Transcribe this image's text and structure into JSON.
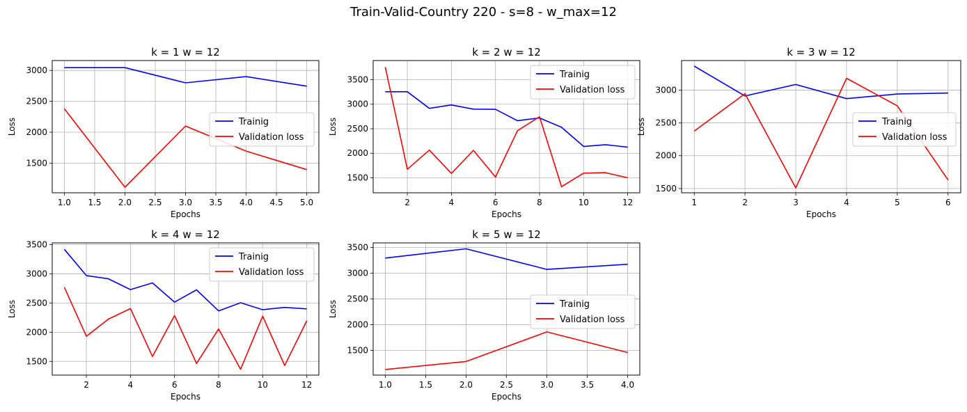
{
  "figure": {
    "title": "Train-Valid-Country 220 - s=8 - w_max=12"
  },
  "colors": {
    "train": "#0000ff",
    "validation": "#ff0000",
    "grid": "#b0b0b0"
  },
  "chart_data": [
    {
      "type": "line",
      "title": "k = 1 w = 12",
      "xlabel": "Epochs",
      "ylabel": "Loss",
      "x": [
        1,
        2,
        3,
        4,
        5
      ],
      "xlim": [
        0.8,
        5.2
      ],
      "ylim": [
        1020,
        3160
      ],
      "xticks": [
        1.0,
        1.5,
        2.0,
        2.5,
        3.0,
        3.5,
        4.0,
        4.5,
        5.0
      ],
      "xtick_labels": [
        "1.0",
        "1.5",
        "2.0",
        "2.5",
        "3.0",
        "3.5",
        "4.0",
        "4.5",
        "5.0"
      ],
      "yticks": [
        1500,
        2000,
        2500,
        3000
      ],
      "ytick_labels": [
        "1500",
        "2000",
        "2500",
        "3000"
      ],
      "grid": true,
      "legend": "center right",
      "series": [
        {
          "name": "Trainig",
          "color": "#0000ff",
          "values": [
            3045,
            3045,
            2800,
            2900,
            2745
          ]
        },
        {
          "name": "Validation loss",
          "color": "#ff0000",
          "values": [
            2380,
            1110,
            2100,
            1695,
            1395
          ]
        }
      ]
    },
    {
      "type": "line",
      "title": "k = 2 w = 12",
      "xlabel": "Epochs",
      "ylabel": "Loss",
      "x": [
        1,
        2,
        3,
        4,
        5,
        6,
        7,
        8,
        9,
        10,
        11,
        12
      ],
      "xlim": [
        0.45,
        12.55
      ],
      "ylim": [
        1195,
        3890
      ],
      "xticks": [
        2,
        4,
        6,
        8,
        10,
        12
      ],
      "xtick_labels": [
        "2",
        "4",
        "6",
        "8",
        "10",
        "12"
      ],
      "yticks": [
        1500,
        2000,
        2500,
        3000,
        3500
      ],
      "ytick_labels": [
        "1500",
        "2000",
        "2500",
        "3000",
        "3500"
      ],
      "grid": true,
      "legend": "upper right",
      "series": [
        {
          "name": "Trainig",
          "color": "#0000ff",
          "values": [
            3255,
            3255,
            2915,
            2985,
            2900,
            2895,
            2665,
            2720,
            2530,
            2140,
            2175,
            2125
          ]
        },
        {
          "name": "Validation loss",
          "color": "#ff0000",
          "values": [
            3760,
            1675,
            2065,
            1590,
            2060,
            1515,
            2460,
            2745,
            1320,
            1595,
            1605,
            1500
          ]
        }
      ]
    },
    {
      "type": "line",
      "title": "k = 3 w = 12",
      "xlabel": "Epochs",
      "ylabel": "Loss",
      "x": [
        1,
        2,
        3,
        4,
        5,
        6
      ],
      "xlim": [
        0.75,
        6.25
      ],
      "ylim": [
        1435,
        3450
      ],
      "xticks": [
        1,
        2,
        3,
        4,
        5,
        6
      ],
      "xtick_labels": [
        "1",
        "2",
        "3",
        "4",
        "5",
        "6"
      ],
      "yticks": [
        1500,
        2000,
        2500,
        3000
      ],
      "ytick_labels": [
        "1500",
        "2000",
        "2500",
        "3000"
      ],
      "grid": true,
      "legend": "center right",
      "series": [
        {
          "name": "Trainig",
          "color": "#0000ff",
          "values": [
            3365,
            2910,
            3085,
            2870,
            2940,
            2955
          ]
        },
        {
          "name": "Validation loss",
          "color": "#ff0000",
          "values": [
            2375,
            2945,
            1510,
            3180,
            2760,
            1630
          ]
        }
      ]
    },
    {
      "type": "line",
      "title": "k = 4 w = 12",
      "xlabel": "Epochs",
      "ylabel": "Loss",
      "x": [
        1,
        2,
        3,
        4,
        5,
        6,
        7,
        8,
        9,
        10,
        11,
        12
      ],
      "xlim": [
        0.45,
        12.55
      ],
      "ylim": [
        1265,
        3530
      ],
      "xticks": [
        2,
        4,
        6,
        8,
        10,
        12
      ],
      "xtick_labels": [
        "2",
        "4",
        "6",
        "8",
        "10",
        "12"
      ],
      "yticks": [
        1500,
        2000,
        2500,
        3000,
        3500
      ],
      "ytick_labels": [
        "1500",
        "2000",
        "2500",
        "3000",
        "3500"
      ],
      "grid": true,
      "legend": "upper right",
      "series": [
        {
          "name": "Trainig",
          "color": "#0000ff",
          "values": [
            3420,
            2970,
            2915,
            2730,
            2845,
            2515,
            2725,
            2365,
            2505,
            2385,
            2425,
            2400
          ]
        },
        {
          "name": "Validation loss",
          "color": "#ff0000",
          "values": [
            2770,
            1930,
            2225,
            2405,
            1585,
            2285,
            1465,
            2055,
            1365,
            2275,
            1430,
            2195
          ]
        }
      ]
    },
    {
      "type": "line",
      "title": "k = 5 w = 12",
      "xlabel": "Epochs",
      "ylabel": "Loss",
      "x": [
        1,
        2,
        3,
        4
      ],
      "xlim": [
        0.85,
        4.15
      ],
      "ylim": [
        1020,
        3590
      ],
      "xticks": [
        1.0,
        1.5,
        2.0,
        2.5,
        3.0,
        3.5,
        4.0
      ],
      "xtick_labels": [
        "1.0",
        "1.5",
        "2.0",
        "2.5",
        "3.0",
        "3.5",
        "4.0"
      ],
      "yticks": [
        1500,
        2000,
        2500,
        3000,
        3500
      ],
      "ytick_labels": [
        "1500",
        "2000",
        "2500",
        "3000",
        "3500"
      ],
      "grid": true,
      "legend": "center right",
      "series": [
        {
          "name": "Trainig",
          "color": "#0000ff",
          "values": [
            3295,
            3475,
            3075,
            3175
          ]
        },
        {
          "name": "Validation loss",
          "color": "#ff0000",
          "values": [
            1130,
            1285,
            1860,
            1460
          ]
        }
      ]
    }
  ]
}
